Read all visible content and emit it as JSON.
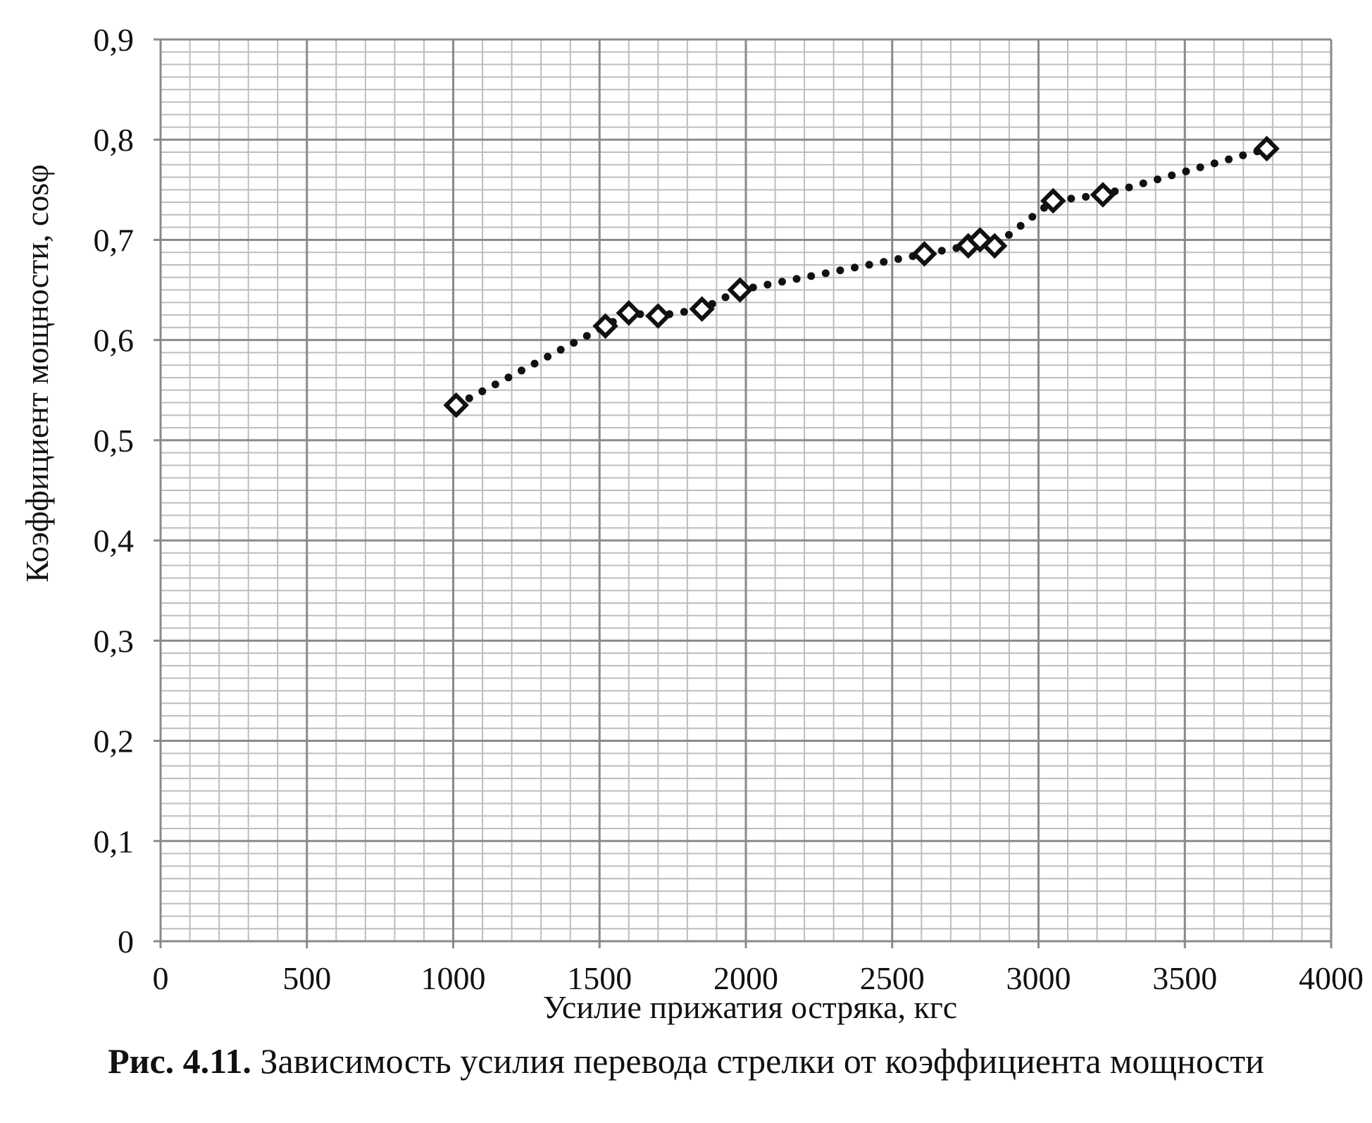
{
  "chart_data": {
    "type": "scatter",
    "xlabel": "Усилие прижатия остряка, кгс",
    "ylabel": "Коэффициент мощности, cosφ",
    "xlim": [
      0,
      4000
    ],
    "ylim": [
      0,
      0.9
    ],
    "x_ticks": [
      0,
      500,
      1000,
      1500,
      2000,
      2500,
      3000,
      3500,
      4000
    ],
    "x_tick_labels": [
      "0",
      "500",
      "1000",
      "1500",
      "2000",
      "2500",
      "3000",
      "3500",
      "4000"
    ],
    "y_ticks": [
      0,
      0.1,
      0.2,
      0.3,
      0.4,
      0.5,
      0.6,
      0.7,
      0.8,
      0.9
    ],
    "y_tick_labels": [
      "0",
      "0,1",
      "0,2",
      "0,3",
      "0,4",
      "0,5",
      "0,6",
      "0,7",
      "0,8",
      "0,9"
    ],
    "grid": true,
    "minor_grid": true,
    "legend": "none",
    "marker": "diamond-open",
    "trendline": "dotted",
    "series": [
      {
        "x": [
          1010,
          1520,
          1600,
          1700,
          1850,
          1980,
          2610,
          2760,
          2800,
          2850,
          3050,
          3220,
          3780
        ],
        "y": [
          0.535,
          0.614,
          0.627,
          0.624,
          0.631,
          0.65,
          0.686,
          0.694,
          0.7,
          0.694,
          0.739,
          0.745,
          0.791
        ]
      }
    ]
  },
  "caption": {
    "label": "Рис. 4.11.",
    "text": " Зависимость усилия перевода стрелки от коэффициента мощности"
  },
  "colors": {
    "major_grid": "#8a8a8a",
    "minor_grid": "#bdbdbd",
    "marker": "#111111",
    "trendline": "#111111"
  }
}
